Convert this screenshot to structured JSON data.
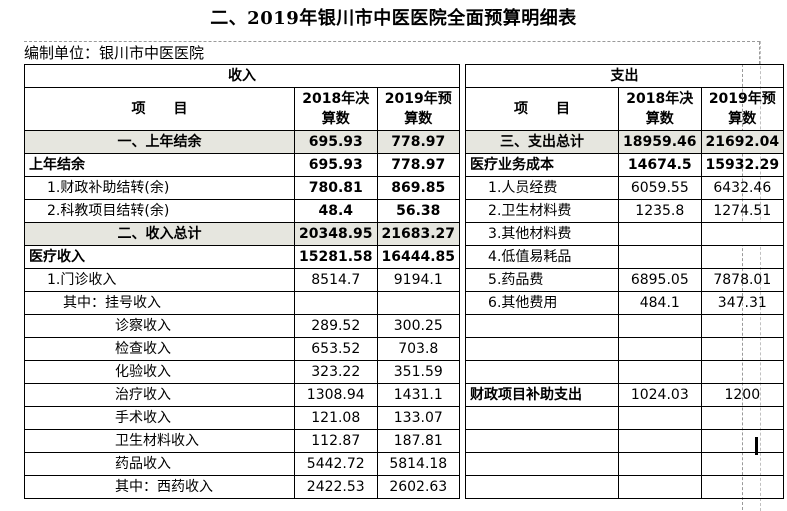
{
  "title": "二、2019年银川市中医医院全面预算明细表",
  "unit_label": "编制单位：银川市中医医院",
  "header": {
    "income": "收入",
    "expense": "支出",
    "item_left": "项　　目",
    "item_right": "项　　目",
    "y2018_a": "2018年决",
    "y2018_b": "算数",
    "y2019_a": "2019年预",
    "y2019_b": "算数"
  },
  "rows": [
    {
      "l": "一、上年结余",
      "l18": "695.93",
      "l19": "778.97",
      "r": "三、支出总计",
      "r18": "18959.46",
      "r19": "21692.04"
    },
    {
      "l": "上年结余",
      "l18": "695.93",
      "l19": "778.97",
      "r": "医疗业务成本",
      "r18": "14674.5",
      "r19": "15932.29"
    },
    {
      "l": "1.财政补助结转(余)",
      "l18": "780.81",
      "l19": "869.85",
      "r": "1.人员经费",
      "r18": "6059.55",
      "r19": "6432.46"
    },
    {
      "l": "2.科教项目结转(余)",
      "l18": "48.4",
      "l19": "56.38",
      "r": "2.卫生材料费",
      "r18": "1235.8",
      "r19": "1274.51"
    },
    {
      "l": "二、收入总计",
      "l18": "20348.95",
      "l19": "21683.27",
      "r": "3.其他材料费",
      "r18": "",
      "r19": ""
    },
    {
      "l": "医疗收入",
      "l18": "15281.58",
      "l19": "16444.85",
      "r": "4.低值易耗品",
      "r18": "",
      "r19": ""
    },
    {
      "l": "1.门诊收入",
      "l18": "8514.7",
      "l19": "9194.1",
      "r": "5.药品费",
      "r18": "6895.05",
      "r19": "7878.01"
    },
    {
      "l": "其中：挂号收入",
      "l18": "",
      "l19": "",
      "r": "6.其他费用",
      "r18": "484.1",
      "r19": "347.31"
    },
    {
      "l": "诊察收入",
      "l18": "289.52",
      "l19": "300.25",
      "r": "",
      "r18": "",
      "r19": ""
    },
    {
      "l": "检查收入",
      "l18": "653.52",
      "l19": "703.8",
      "r": "",
      "r18": "",
      "r19": ""
    },
    {
      "l": "化验收入",
      "l18": "323.22",
      "l19": "351.59",
      "r": "",
      "r18": "",
      "r19": ""
    },
    {
      "l": "治疗收入",
      "l18": "1308.94",
      "l19": "1431.1",
      "r": "财政项目补助支出",
      "r18": "1024.03",
      "r19": "1200"
    },
    {
      "l": "手术收入",
      "l18": "121.08",
      "l19": "133.07",
      "r": "",
      "r18": "",
      "r19": ""
    },
    {
      "l": "卫生材料收入",
      "l18": "112.87",
      "l19": "187.81",
      "r": "",
      "r18": "",
      "r19": ""
    },
    {
      "l": "药品收入",
      "l18": "5442.72",
      "l19": "5814.18",
      "r": "",
      "r18": "",
      "r19": ""
    },
    {
      "l": "其中：西药收入",
      "l18": "2422.53",
      "l19": "2602.63",
      "r": "",
      "r18": "",
      "r19": ""
    }
  ]
}
